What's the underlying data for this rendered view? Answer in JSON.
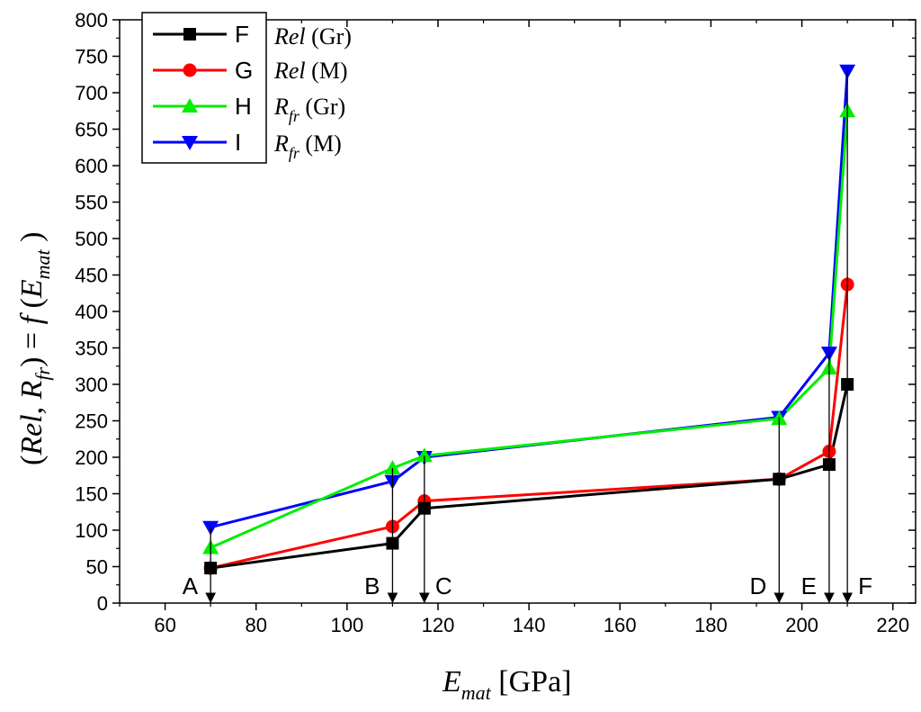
{
  "chart_data": {
    "type": "line",
    "title": "",
    "xlabel": "E_mat [GPa]",
    "ylabel": "(Rel, R_fr) = f(E_mat)",
    "xlim": [
      50,
      225
    ],
    "ylim": [
      0,
      800
    ],
    "x_ticks": [
      60,
      80,
      100,
      120,
      140,
      160,
      180,
      200,
      220
    ],
    "y_ticks": [
      0,
      50,
      100,
      150,
      200,
      250,
      300,
      350,
      400,
      450,
      500,
      550,
      600,
      650,
      700,
      750,
      800
    ],
    "x": [
      70,
      110,
      117,
      195,
      206,
      210
    ],
    "series": [
      {
        "name": "F",
        "description": "Rel (Gr)",
        "color": "#000000",
        "marker": "square",
        "values": [
          48,
          82,
          130,
          170,
          190,
          300
        ]
      },
      {
        "name": "G",
        "description": "Rel (M)",
        "color": "#ff0000",
        "marker": "circle",
        "values": [
          48,
          105,
          140,
          170,
          208,
          437
        ]
      },
      {
        "name": "H",
        "description": "R_fr (Gr)",
        "color": "#00ee00",
        "marker": "triangle-up",
        "values": [
          76,
          185,
          202,
          253,
          322,
          675
        ]
      },
      {
        "name": "I",
        "description": "R_fr (M)",
        "color": "#0000ff",
        "marker": "triangle-down",
        "values": [
          104,
          167,
          200,
          255,
          343,
          730
        ]
      }
    ],
    "markers": [
      {
        "label": "A",
        "x": 70
      },
      {
        "label": "B",
        "x": 110
      },
      {
        "label": "C",
        "x": 117
      },
      {
        "label": "D",
        "x": 195
      },
      {
        "label": "E",
        "x": 206
      },
      {
        "label": "F",
        "x": 210
      }
    ],
    "legend_position": "top-left"
  },
  "xlabel_parts": {
    "main": "E",
    "sub": "mat",
    "unit": " [GPa]"
  },
  "ylabel_parts": {
    "open": "(",
    "rel": "Rel",
    "comma": ", ",
    "r": "R",
    "r_sub": "fr",
    "close": ") = ",
    "f": "f",
    "open2": " (",
    "e": "E",
    "e_sub": "mat",
    "close2": " )"
  },
  "legend_descriptions": [
    {
      "main": "Rel",
      "sub": "",
      "suffix": " (Gr)"
    },
    {
      "main": "Rel",
      "sub": "",
      "suffix": " (M)"
    },
    {
      "main": "R",
      "sub": "fr",
      "suffix": " (Gr)"
    },
    {
      "main": "R",
      "sub": "fr",
      "suffix": " (M)"
    }
  ]
}
